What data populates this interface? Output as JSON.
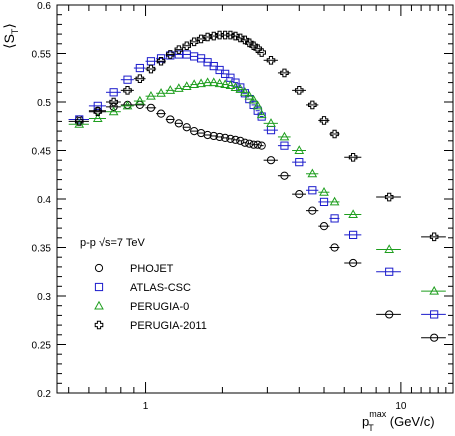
{
  "chart_data": {
    "type": "scatter",
    "x_scale": "log",
    "xlim": [
      0.45,
      16
    ],
    "ylim": [
      0.2,
      0.6
    ],
    "grid": false,
    "ylabel": {
      "base": "S",
      "sub": "T"
    },
    "xlabel": {
      "base": "p",
      "sub": "T",
      "sup": "max",
      "unit": "(GeV/c)"
    },
    "x_tick_labels": [
      {
        "value": 1,
        "label": "1"
      },
      {
        "value": 10,
        "label": "10"
      }
    ],
    "y_tick_labels": [
      {
        "value": 0.2,
        "label": "0.2"
      },
      {
        "value": 0.25,
        "label": "0.25"
      },
      {
        "value": 0.3,
        "label": "0.3"
      },
      {
        "value": 0.35,
        "label": "0.35"
      },
      {
        "value": 0.4,
        "label": "0.4"
      },
      {
        "value": 0.45,
        "label": "0.45"
      },
      {
        "value": 0.5,
        "label": "0.5"
      },
      {
        "value": 0.55,
        "label": "0.55"
      },
      {
        "value": 0.6,
        "label": "0.6"
      }
    ],
    "legend_header": "p-p  √s=7 TeV",
    "legend_placement": "lower-left",
    "series": [
      {
        "name": "PHOJET",
        "marker": "circle",
        "color": "#000000",
        "points": [
          [
            0.55,
            0.482,
            0.05
          ],
          [
            0.65,
            0.491,
            0.05
          ],
          [
            0.75,
            0.495,
            0.05
          ],
          [
            0.85,
            0.497,
            0.05
          ],
          [
            0.95,
            0.497,
            0.05
          ],
          [
            1.05,
            0.494,
            0.05
          ],
          [
            1.15,
            0.488,
            0.05
          ],
          [
            1.25,
            0.482,
            0.05
          ],
          [
            1.35,
            0.478,
            0.05
          ],
          [
            1.45,
            0.474,
            0.05
          ],
          [
            1.55,
            0.47,
            0.05
          ],
          [
            1.65,
            0.468,
            0.05
          ],
          [
            1.75,
            0.466,
            0.05
          ],
          [
            1.85,
            0.465,
            0.05
          ],
          [
            1.95,
            0.464,
            0.05
          ],
          [
            2.05,
            0.463,
            0.05
          ],
          [
            2.15,
            0.462,
            0.05
          ],
          [
            2.25,
            0.461,
            0.05
          ],
          [
            2.35,
            0.46,
            0.05
          ],
          [
            2.45,
            0.458,
            0.05
          ],
          [
            2.55,
            0.457,
            0.05
          ],
          [
            2.65,
            0.456,
            0.05
          ],
          [
            2.75,
            0.456,
            0.05
          ],
          [
            2.85,
            0.455,
            0.05
          ],
          [
            3.1,
            0.44,
            0.2
          ],
          [
            3.5,
            0.424,
            0.2
          ],
          [
            4.0,
            0.405,
            0.25
          ],
          [
            4.5,
            0.388,
            0.25
          ],
          [
            5.0,
            0.372,
            0.25
          ],
          [
            5.5,
            0.35,
            0.25
          ],
          [
            6.5,
            0.334,
            0.5
          ],
          [
            9.0,
            0.281,
            1.0
          ],
          [
            13.5,
            0.257,
            1.5
          ]
        ]
      },
      {
        "name": "ATLAS-CSC",
        "marker": "square",
        "color": "#1c1ccc",
        "points": [
          [
            0.55,
            0.482,
            0.05
          ],
          [
            0.65,
            0.496,
            0.05
          ],
          [
            0.75,
            0.51,
            0.05
          ],
          [
            0.85,
            0.523,
            0.05
          ],
          [
            0.95,
            0.535,
            0.05
          ],
          [
            1.05,
            0.542,
            0.05
          ],
          [
            1.15,
            0.545,
            0.05
          ],
          [
            1.25,
            0.548,
            0.05
          ],
          [
            1.35,
            0.549,
            0.05
          ],
          [
            1.45,
            0.549,
            0.05
          ],
          [
            1.55,
            0.547,
            0.05
          ],
          [
            1.65,
            0.545,
            0.05
          ],
          [
            1.75,
            0.541,
            0.05
          ],
          [
            1.85,
            0.537,
            0.05
          ],
          [
            1.95,
            0.533,
            0.05
          ],
          [
            2.05,
            0.529,
            0.05
          ],
          [
            2.15,
            0.525,
            0.05
          ],
          [
            2.25,
            0.52,
            0.05
          ],
          [
            2.35,
            0.515,
            0.05
          ],
          [
            2.45,
            0.509,
            0.05
          ],
          [
            2.55,
            0.503,
            0.05
          ],
          [
            2.65,
            0.497,
            0.05
          ],
          [
            2.75,
            0.491,
            0.05
          ],
          [
            2.85,
            0.485,
            0.05
          ],
          [
            3.1,
            0.471,
            0.2
          ],
          [
            3.5,
            0.455,
            0.2
          ],
          [
            4.0,
            0.438,
            0.25
          ],
          [
            4.5,
            0.409,
            0.25
          ],
          [
            5.0,
            0.397,
            0.25
          ],
          [
            5.5,
            0.38,
            0.25
          ],
          [
            6.5,
            0.363,
            0.5
          ],
          [
            9.0,
            0.325,
            1.0
          ],
          [
            13.5,
            0.281,
            1.5
          ]
        ]
      },
      {
        "name": "PERUGIA-0",
        "marker": "triangle",
        "color": "#1e9e1e",
        "points": [
          [
            0.55,
            0.477,
            0.05
          ],
          [
            0.65,
            0.483,
            0.05
          ],
          [
            0.75,
            0.49,
            0.05
          ],
          [
            0.85,
            0.496,
            0.05
          ],
          [
            0.95,
            0.501,
            0.05
          ],
          [
            1.05,
            0.506,
            0.05
          ],
          [
            1.15,
            0.509,
            0.05
          ],
          [
            1.25,
            0.512,
            0.05
          ],
          [
            1.35,
            0.514,
            0.05
          ],
          [
            1.45,
            0.516,
            0.05
          ],
          [
            1.55,
            0.518,
            0.05
          ],
          [
            1.65,
            0.519,
            0.05
          ],
          [
            1.75,
            0.52,
            0.05
          ],
          [
            1.85,
            0.52,
            0.05
          ],
          [
            1.95,
            0.519,
            0.05
          ],
          [
            2.05,
            0.518,
            0.05
          ],
          [
            2.15,
            0.517,
            0.05
          ],
          [
            2.25,
            0.515,
            0.05
          ],
          [
            2.35,
            0.513,
            0.05
          ],
          [
            2.45,
            0.51,
            0.05
          ],
          [
            2.55,
            0.506,
            0.05
          ],
          [
            2.65,
            0.502,
            0.05
          ],
          [
            2.75,
            0.496,
            0.05
          ],
          [
            2.85,
            0.487,
            0.05
          ],
          [
            3.1,
            0.478,
            0.2
          ],
          [
            3.5,
            0.464,
            0.2
          ],
          [
            4.0,
            0.45,
            0.25
          ],
          [
            4.5,
            0.426,
            0.25
          ],
          [
            5.0,
            0.407,
            0.25
          ],
          [
            5.5,
            0.397,
            0.25
          ],
          [
            6.5,
            0.384,
            0.5
          ],
          [
            9.0,
            0.348,
            1.0
          ],
          [
            13.5,
            0.305,
            1.5
          ]
        ]
      },
      {
        "name": "PERUGIA-2011",
        "marker": "cross",
        "color": "#000000",
        "points": [
          [
            0.55,
            0.48,
            0.05
          ],
          [
            0.65,
            0.49,
            0.05
          ],
          [
            0.75,
            0.5,
            0.05
          ],
          [
            0.85,
            0.512,
            0.05
          ],
          [
            0.95,
            0.524,
            0.05
          ],
          [
            1.05,
            0.534,
            0.05
          ],
          [
            1.15,
            0.542,
            0.05
          ],
          [
            1.25,
            0.549,
            0.05
          ],
          [
            1.35,
            0.554,
            0.05
          ],
          [
            1.45,
            0.558,
            0.05
          ],
          [
            1.55,
            0.562,
            0.05
          ],
          [
            1.65,
            0.565,
            0.05
          ],
          [
            1.75,
            0.567,
            0.05
          ],
          [
            1.85,
            0.568,
            0.05
          ],
          [
            1.95,
            0.569,
            0.05
          ],
          [
            2.05,
            0.569,
            0.05
          ],
          [
            2.15,
            0.569,
            0.05
          ],
          [
            2.25,
            0.568,
            0.05
          ],
          [
            2.35,
            0.566,
            0.05
          ],
          [
            2.45,
            0.564,
            0.05
          ],
          [
            2.55,
            0.561,
            0.05
          ],
          [
            2.65,
            0.558,
            0.05
          ],
          [
            2.75,
            0.555,
            0.05
          ],
          [
            2.85,
            0.551,
            0.05
          ],
          [
            3.1,
            0.543,
            0.2
          ],
          [
            3.5,
            0.53,
            0.2
          ],
          [
            4.0,
            0.512,
            0.25
          ],
          [
            4.5,
            0.497,
            0.25
          ],
          [
            5.0,
            0.481,
            0.25
          ],
          [
            5.5,
            0.467,
            0.25
          ],
          [
            6.5,
            0.443,
            0.5
          ],
          [
            9.0,
            0.402,
            1.0
          ],
          [
            13.5,
            0.361,
            1.5
          ]
        ]
      }
    ]
  }
}
